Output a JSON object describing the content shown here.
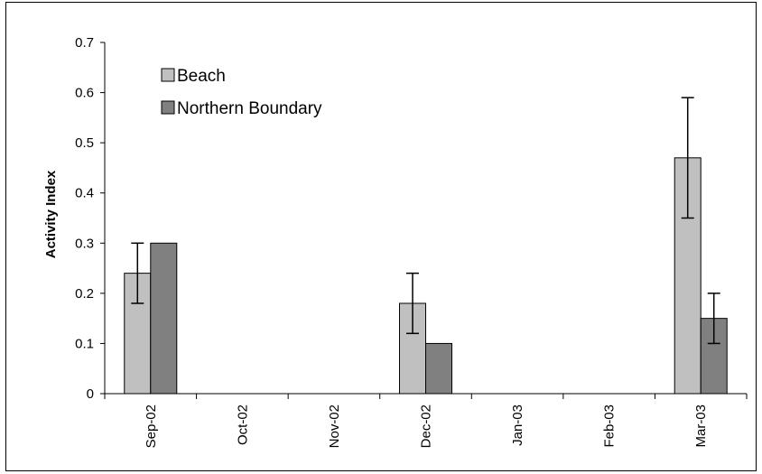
{
  "chart_data": {
    "type": "bar",
    "categories": [
      "Sep-02",
      "Oct-02",
      "Nov-02",
      "Dec-02",
      "Jan-03",
      "Feb-03",
      "Mar-03"
    ],
    "series": [
      {
        "name": "Beach",
        "color": "#c0c0c0",
        "values": [
          0.24,
          null,
          null,
          0.18,
          null,
          null,
          0.47
        ],
        "error": [
          0.06,
          null,
          null,
          0.06,
          null,
          null,
          0.12
        ]
      },
      {
        "name": "Northern Boundary",
        "color": "#808080",
        "values": [
          0.3,
          null,
          null,
          0.1,
          null,
          null,
          0.15
        ],
        "error": [
          0,
          null,
          null,
          0,
          null,
          null,
          0.05
        ]
      }
    ],
    "ylabel": "Activity Index",
    "xlabel": "",
    "title": "",
    "ylim": [
      0,
      0.7
    ],
    "yticks": [
      "0",
      "0.1",
      "0.2",
      "0.3",
      "0.4",
      "0.5",
      "0.6",
      "0.7"
    ],
    "legend_position": "top-left",
    "grid": false
  }
}
